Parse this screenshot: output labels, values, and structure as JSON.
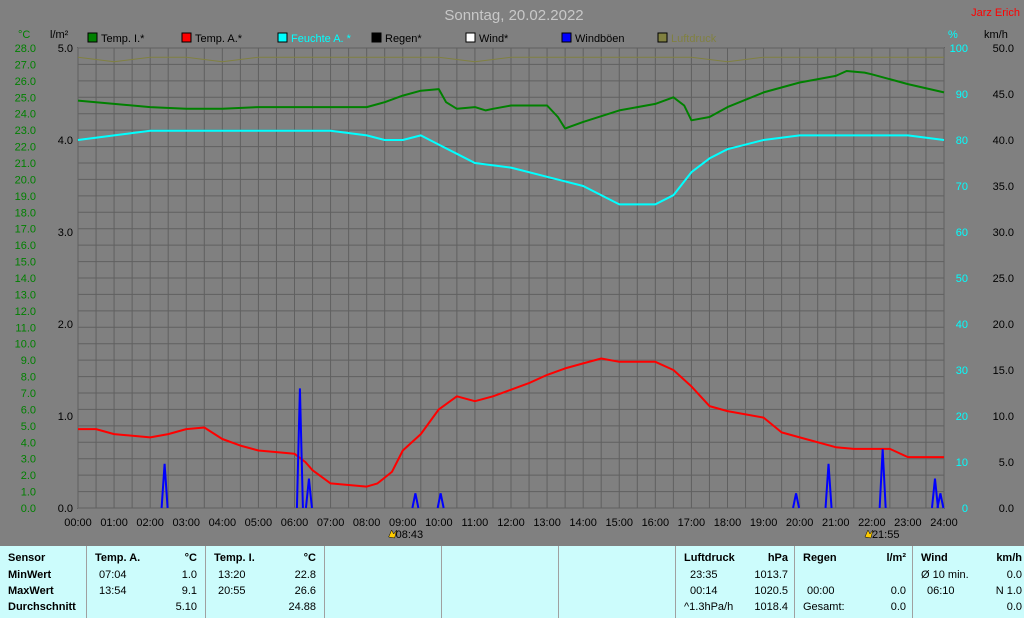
{
  "title": "Sonntag, 20.02.2022",
  "author": "Jarz Erich",
  "units": {
    "temp": "°C",
    "rain": "l/m²",
    "humidity": "%",
    "wind": "km/h"
  },
  "legend": [
    {
      "label": "Temp. I.*",
      "color": "#008000"
    },
    {
      "label": "Temp. A.*",
      "color": "#ff0000"
    },
    {
      "label": "Feuchte A. *",
      "color": "#00ffff"
    },
    {
      "label": "Regen*",
      "color": "#000000"
    },
    {
      "label": "Wind*",
      "color": "#ffffff"
    },
    {
      "label": "Windböen",
      "color": "#0000ff"
    },
    {
      "label": "Luftdruck",
      "color": "#808040"
    }
  ],
  "markers": [
    {
      "time": "08:43",
      "hour": 8.72
    },
    {
      "time": "21:55",
      "hour": 21.92
    }
  ],
  "chart_data": {
    "type": "line",
    "title": "Sonntag, 20.02.2022",
    "x_ticks": [
      "00:00",
      "01:00",
      "02:00",
      "03:00",
      "04:00",
      "05:00",
      "06:00",
      "07:00",
      "08:00",
      "09:00",
      "10:00",
      "11:00",
      "12:00",
      "13:00",
      "14:00",
      "15:00",
      "16:00",
      "17:00",
      "18:00",
      "19:00",
      "20:00",
      "21:00",
      "22:00",
      "23:00",
      "24:00"
    ],
    "xlim": [
      0,
      24
    ],
    "axes": {
      "temp": {
        "ylim": [
          0,
          28
        ],
        "ticks": [
          "0.0",
          "1.0",
          "2.0",
          "3.0",
          "4.0",
          "5.0",
          "6.0",
          "7.0",
          "8.0",
          "9.0",
          "10.0",
          "11.0",
          "12.0",
          "13.0",
          "14.0",
          "15.0",
          "16.0",
          "17.0",
          "18.0",
          "19.0",
          "20.0",
          "21.0",
          "22.0",
          "23.0",
          "24.0",
          "25.0",
          "26.0",
          "27.0",
          "28.0"
        ]
      },
      "rain": {
        "ylim": [
          0,
          5
        ],
        "ticks": [
          "0.0",
          "1.0",
          "2.0",
          "3.0",
          "4.0",
          "5.0"
        ]
      },
      "humidity": {
        "ylim": [
          0,
          100
        ],
        "ticks": [
          "0",
          "10",
          "20",
          "30",
          "40",
          "50",
          "60",
          "70",
          "80",
          "90",
          "100"
        ]
      },
      "wind": {
        "ylim": [
          0,
          50
        ],
        "ticks": [
          "0.0",
          "5.0",
          "10.0",
          "15.0",
          "20.0",
          "25.0",
          "30.0",
          "35.0",
          "40.0",
          "45.0",
          "50.0"
        ]
      }
    },
    "grid": true,
    "series": [
      {
        "name": "Temp. I.*",
        "axis": "temp",
        "color": "#008000",
        "x": [
          0,
          1,
          2,
          3,
          4,
          5,
          6,
          7,
          8,
          8.5,
          9,
          9.5,
          10,
          10.2,
          10.5,
          11,
          11.3,
          11.5,
          12,
          13,
          13.3,
          13.5,
          14,
          15,
          16,
          16.5,
          16.8,
          17,
          17.5,
          18,
          19,
          20,
          21,
          21.3,
          21.8,
          22,
          23,
          24
        ],
        "y": [
          24.8,
          24.6,
          24.4,
          24.3,
          24.3,
          24.4,
          24.4,
          24.4,
          24.4,
          24.7,
          25.1,
          25.4,
          25.5,
          24.7,
          24.3,
          24.4,
          24.2,
          24.3,
          24.5,
          24.5,
          23.8,
          23.1,
          23.5,
          24.2,
          24.6,
          25.0,
          24.5,
          23.6,
          23.8,
          24.4,
          25.3,
          25.9,
          26.3,
          26.6,
          26.5,
          26.4,
          25.8,
          25.3
        ]
      },
      {
        "name": "Temp. A.*",
        "axis": "temp",
        "color": "#ff0000",
        "x": [
          0,
          0.5,
          1,
          2,
          2.5,
          3,
          3.5,
          4,
          4.5,
          5,
          5.5,
          6,
          6.3,
          6.5,
          7,
          7.5,
          8,
          8.3,
          8.7,
          9,
          9.5,
          10,
          10.5,
          11,
          11.5,
          12,
          12.5,
          13,
          13.5,
          14,
          14.5,
          15,
          15.5,
          16,
          16.5,
          17,
          17.5,
          18,
          19,
          19.5,
          20,
          21,
          21.5,
          22,
          22.5,
          23,
          24
        ],
        "y": [
          4.8,
          4.8,
          4.5,
          4.3,
          4.5,
          4.8,
          4.9,
          4.2,
          3.8,
          3.5,
          3.4,
          3.3,
          2.8,
          2.3,
          1.5,
          1.4,
          1.3,
          1.5,
          2.2,
          3.5,
          4.5,
          6.0,
          6.8,
          6.5,
          6.8,
          7.2,
          7.6,
          8.1,
          8.5,
          8.8,
          9.1,
          8.9,
          8.9,
          8.9,
          8.4,
          7.4,
          6.2,
          5.9,
          5.5,
          4.6,
          4.3,
          3.7,
          3.6,
          3.6,
          3.6,
          3.1,
          3.1
        ]
      },
      {
        "name": "Feuchte A. *",
        "axis": "humidity",
        "color": "#00ffff",
        "x": [
          0,
          1,
          2,
          3,
          4,
          5,
          6,
          7,
          8,
          8.5,
          9,
          9.5,
          10,
          10.5,
          11,
          12,
          13,
          14,
          15,
          16,
          16.5,
          17,
          17.5,
          18,
          19,
          20,
          21,
          22,
          22.5,
          23,
          24
        ],
        "y": [
          80,
          81,
          82,
          82,
          82,
          82,
          82,
          82,
          81,
          80,
          80,
          81,
          79,
          77,
          75,
          74,
          72,
          70,
          66,
          66,
          68,
          73,
          76,
          78,
          80,
          81,
          81,
          81,
          81,
          81,
          80
        ]
      },
      {
        "name": "Luftdruck",
        "axis": "humidity",
        "color": "#808040",
        "x": [
          0,
          1,
          2,
          3,
          4,
          5,
          6,
          7,
          8,
          9,
          10,
          11,
          12,
          13,
          14,
          15,
          16,
          17,
          18,
          19,
          20,
          21,
          22,
          23,
          24
        ],
        "y": [
          98,
          97,
          98,
          98,
          97,
          98,
          98,
          98,
          98,
          98,
          98,
          97,
          98,
          98,
          98,
          98,
          98,
          98,
          97,
          98,
          98,
          98,
          98,
          98,
          98
        ]
      },
      {
        "name": "Windböen",
        "axis": "wind",
        "color": "#0000ff",
        "kind": "spikes",
        "x": [
          2.4,
          6.15,
          6.4,
          9.35,
          10.05,
          19.9,
          20.8,
          22.3,
          23.75,
          23.9
        ],
        "y": [
          4.8,
          13.0,
          3.2,
          1.6,
          1.6,
          1.6,
          4.8,
          6.4,
          3.2,
          1.6
        ]
      }
    ]
  },
  "summary": {
    "sensor": {
      "header": "Sensor",
      "rows": [
        "MinWert",
        "MaxWert",
        "Durchschnitt"
      ]
    },
    "temp_a": {
      "header": "Temp. A.",
      "unit": "°C",
      "rows": [
        [
          "07:04",
          "1.0"
        ],
        [
          "13:54",
          "9.1"
        ],
        [
          "",
          "5.10"
        ]
      ]
    },
    "temp_i": {
      "header": "Temp. I.",
      "unit": "°C",
      "rows": [
        [
          "13:20",
          "22.8"
        ],
        [
          "20:55",
          "26.6"
        ],
        [
          "",
          "24.88"
        ]
      ]
    },
    "pressure": {
      "header": "Luftdruck",
      "unit": "hPa",
      "rows": [
        [
          "23:35",
          "1013.7"
        ],
        [
          "00:14",
          "1020.5"
        ],
        [
          "^1.3hPa/h",
          "1018.4"
        ]
      ]
    },
    "rain": {
      "header": "Regen",
      "unit": "l/m²",
      "rows": [
        [
          "",
          ""
        ],
        [
          "00:00",
          "0.0"
        ],
        [
          "Gesamt:",
          "0.0"
        ]
      ]
    },
    "wind": {
      "header": "Wind",
      "unit": "km/h",
      "rows": [
        [
          "Ø 10 min.",
          "0.0"
        ],
        [
          "06:10",
          "N 1.0"
        ],
        [
          "",
          "0.0"
        ]
      ]
    }
  }
}
